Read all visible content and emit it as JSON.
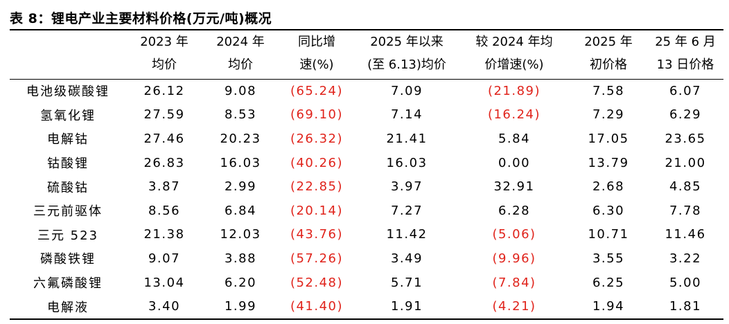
{
  "title": "表 8：锂电产业主要材料价格(万元/吨)概况",
  "columns": [
    {
      "line1": "",
      "line2": ""
    },
    {
      "line1": "2023 年",
      "line2": "均价"
    },
    {
      "line1": "2024 年",
      "line2": "均价"
    },
    {
      "line1": "同比增",
      "line2": "速(%)"
    },
    {
      "line1": "2025 年以来",
      "line2": "(至 6.13)均价"
    },
    {
      "line1": "较 2024 年均",
      "line2": "价增速(%)"
    },
    {
      "line1": "2025 年",
      "line2": "初价格"
    },
    {
      "line1": "25 年 6 月",
      "line2": "13 日价格"
    }
  ],
  "rows": [
    {
      "name": "电池级碳酸锂",
      "avg2023": "26.12",
      "avg2024": "9.08",
      "yoy": "(65.24)",
      "avg2025": "7.09",
      "vs2024": "(21.89)",
      "start2025": "7.58",
      "jun13": "6.07"
    },
    {
      "name": "氢氧化锂",
      "avg2023": "27.59",
      "avg2024": "8.53",
      "yoy": "(69.10)",
      "avg2025": "7.14",
      "vs2024": "(16.24)",
      "start2025": "7.29",
      "jun13": "6.29"
    },
    {
      "name": "电解钴",
      "avg2023": "27.46",
      "avg2024": "20.23",
      "yoy": "(26.32)",
      "avg2025": "21.41",
      "vs2024": "5.84",
      "start2025": "17.05",
      "jun13": "23.65"
    },
    {
      "name": "钴酸锂",
      "avg2023": "26.83",
      "avg2024": "16.03",
      "yoy": "(40.26)",
      "avg2025": "16.03",
      "vs2024": "0.00",
      "start2025": "13.79",
      "jun13": "21.00"
    },
    {
      "name": "硫酸钴",
      "avg2023": "3.87",
      "avg2024": "2.99",
      "yoy": "(22.85)",
      "avg2025": "3.97",
      "vs2024": "32.91",
      "start2025": "2.68",
      "jun13": "4.85"
    },
    {
      "name": "三元前驱体",
      "avg2023": "8.56",
      "avg2024": "6.84",
      "yoy": "(20.14)",
      "avg2025": "7.27",
      "vs2024": "6.28",
      "start2025": "6.30",
      "jun13": "7.78"
    },
    {
      "name": "三元 523",
      "avg2023": "21.38",
      "avg2024": "12.03",
      "yoy": "(43.76)",
      "avg2025": "11.42",
      "vs2024": "(5.06)",
      "start2025": "10.71",
      "jun13": "11.46"
    },
    {
      "name": "磷酸铁锂",
      "avg2023": "9.07",
      "avg2024": "3.88",
      "yoy": "(57.26)",
      "avg2025": "3.49",
      "vs2024": "(9.96)",
      "start2025": "3.55",
      "jun13": "3.22"
    },
    {
      "name": "六氟磷酸锂",
      "avg2023": "13.04",
      "avg2024": "6.20",
      "yoy": "(52.48)",
      "avg2025": "5.71",
      "vs2024": "(7.84)",
      "start2025": "6.25",
      "jun13": "5.00"
    },
    {
      "name": "电解液",
      "avg2023": "3.40",
      "avg2024": "1.99",
      "yoy": "(41.40)",
      "avg2025": "1.91",
      "vs2024": "(4.21)",
      "start2025": "1.94",
      "jun13": "1.81"
    }
  ],
  "colors": {
    "negative": "#e0231b",
    "text": "#000000"
  }
}
